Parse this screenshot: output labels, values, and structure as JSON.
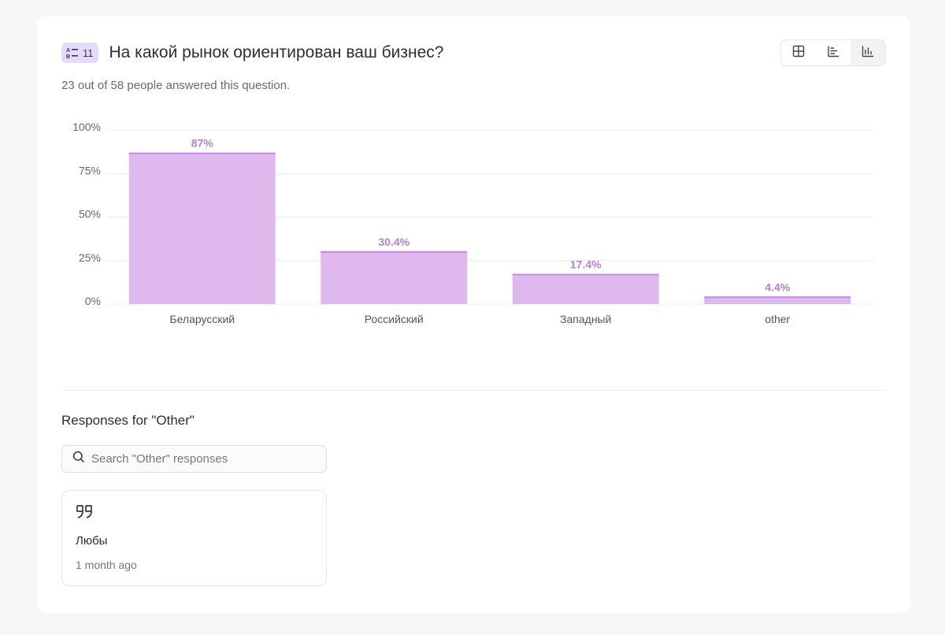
{
  "question": {
    "number": "11",
    "title": "На какой рынок ориентирован ваш бизнес?",
    "answered_text": "23 out of 58 people answered this question."
  },
  "view_toggle": {
    "options": [
      "table-icon",
      "horizontal-bar-icon",
      "vertical-bar-icon"
    ],
    "active": "vertical-bar-icon"
  },
  "chart_data": {
    "type": "bar",
    "categories": [
      "Беларусский",
      "Российский",
      "Западный",
      "other"
    ],
    "values": [
      87,
      30.4,
      17.4,
      4.4
    ],
    "value_labels": [
      "87%",
      "30.4%",
      "17.4%",
      "4.4%"
    ],
    "yticks": [
      "0%",
      "25%",
      "50%",
      "75%",
      "100%"
    ],
    "ylim": [
      0,
      100
    ],
    "grid": true,
    "colors": {
      "bar": "#dfb8ee",
      "bar_top": "#c48cdc",
      "label": "#b77fd0"
    }
  },
  "other_responses": {
    "title": "Responses for \"Other\"",
    "search_placeholder": "Search \"Other\" responses",
    "items": [
      {
        "text": "Любы",
        "time": "1 month ago"
      }
    ]
  }
}
